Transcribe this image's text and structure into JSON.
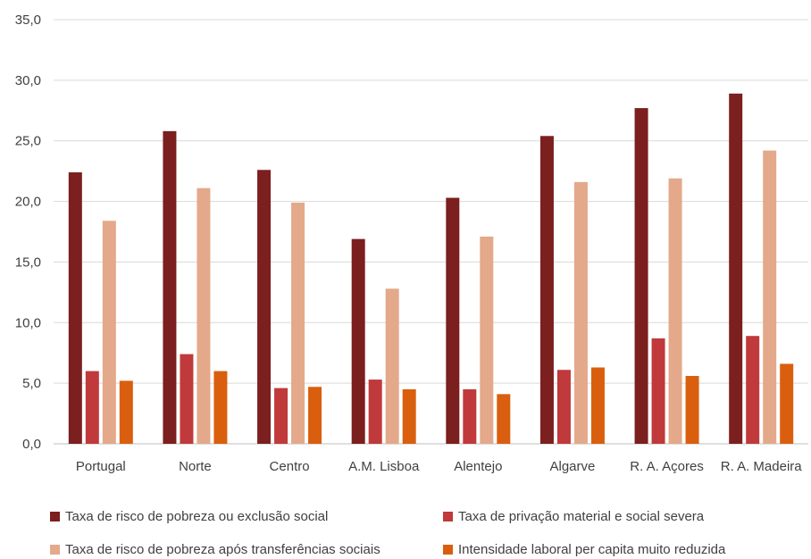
{
  "chart_data": {
    "type": "bar",
    "categories": [
      "Portugal",
      "Norte",
      "Centro",
      "A.M. Lisboa",
      "Alentejo",
      "Algarve",
      "R. A. Açores",
      "R. A. Madeira"
    ],
    "series": [
      {
        "name": "Taxa de risco de pobreza ou exclusão social",
        "color": "#7b1f1f",
        "values": [
          22.4,
          25.8,
          22.6,
          16.9,
          20.3,
          25.4,
          27.7,
          28.9
        ]
      },
      {
        "name": "Taxa de privação material e social severa",
        "color": "#c0393b",
        "values": [
          6.0,
          7.4,
          4.6,
          5.3,
          4.5,
          6.1,
          8.7,
          8.9
        ]
      },
      {
        "name": "Taxa de risco de pobreza após transferências sociais",
        "color": "#e3a98a",
        "values": [
          18.4,
          21.1,
          19.9,
          12.8,
          17.1,
          21.6,
          21.9,
          24.2
        ]
      },
      {
        "name": "Intensidade laboral per capita muito reduzida",
        "color": "#d95f0e",
        "values": [
          5.2,
          6.0,
          4.7,
          4.5,
          4.1,
          6.3,
          5.6,
          6.6
        ]
      }
    ],
    "y_ticks": [
      "0,0",
      "5,0",
      "10,0",
      "15,0",
      "20,0",
      "25,0",
      "30,0",
      "35,0"
    ],
    "ylim": [
      0,
      35
    ],
    "grid": true,
    "legend_position": "bottom"
  }
}
